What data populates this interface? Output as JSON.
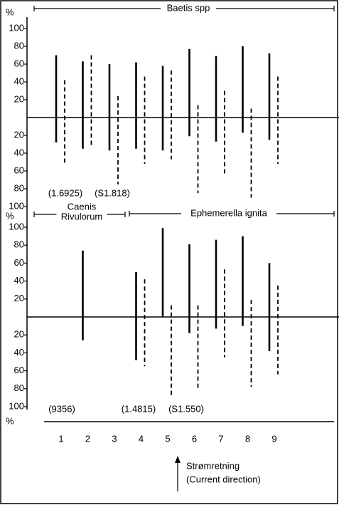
{
  "chart_data": [
    {
      "type": "updown",
      "y_label": "%",
      "groups": [
        {
          "label_lines": [
            "Baetis spp"
          ]
        }
      ],
      "ylim": [
        -100,
        100
      ],
      "yticks": [
        100,
        80,
        60,
        40,
        20,
        {
          "value": -20,
          "label": "20"
        },
        {
          "value": -40,
          "label": "40"
        },
        {
          "value": -60,
          "label": "60"
        },
        {
          "value": -80,
          "label": "80"
        },
        {
          "value": -100,
          "label": "100"
        }
      ],
      "series": [
        {
          "style": "solid",
          "color": "#000000",
          "up": [
            70,
            63,
            60,
            62,
            58,
            77,
            69,
            80,
            72
          ],
          "down": [
            -28,
            -35,
            -37,
            -35,
            -37,
            -21,
            -27,
            -17,
            -25
          ]
        },
        {
          "style": "dashed",
          "color": "#000000",
          "up": [
            42,
            70,
            24,
            46,
            53,
            14,
            30,
            10,
            46
          ],
          "down": [
            -53,
            -32,
            -75,
            -52,
            -47,
            -85,
            -66,
            -90,
            -52
          ]
        }
      ],
      "annotations": [
        "(1.6925)",
        "(S1.818)"
      ]
    },
    {
      "type": "updown",
      "y_label": "%",
      "y_label_bottom": "%",
      "groups": [
        {
          "label_lines": [
            "Caenis",
            "Rivulorum"
          ]
        },
        {
          "label_lines": [
            "Ephemerella ignita"
          ]
        }
      ],
      "categories": [
        "1",
        "2",
        "3",
        "4",
        "5",
        "6",
        "7",
        "8",
        "9"
      ],
      "ylim": [
        -100,
        100
      ],
      "yticks": [
        100,
        80,
        60,
        40,
        20,
        {
          "value": -20,
          "label": "20"
        },
        {
          "value": -40,
          "label": "40"
        },
        {
          "value": -60,
          "label": "60"
        },
        {
          "value": -80,
          "label": "80"
        },
        {
          "value": -100,
          "label": "100"
        }
      ],
      "series": [
        {
          "style": "solid",
          "color": "#000000",
          "up": [
            null,
            74,
            null,
            50,
            99,
            81,
            86,
            90,
            60
          ],
          "down": [
            null,
            -26,
            null,
            -48,
            0,
            -18,
            -13,
            -10,
            -38
          ]
        },
        {
          "style": "dashed",
          "color": "#000000",
          "up": [
            null,
            null,
            null,
            42,
            13,
            13,
            53,
            19,
            35
          ],
          "down": [
            null,
            null,
            null,
            -55,
            -87,
            -82,
            -45,
            -78,
            -64
          ]
        }
      ],
      "annotations": [
        "(9356)",
        "(1.4815)",
        "(S1.550)"
      ],
      "note_lines": [
        "Strømretning",
        "(Current direction)"
      ]
    }
  ]
}
